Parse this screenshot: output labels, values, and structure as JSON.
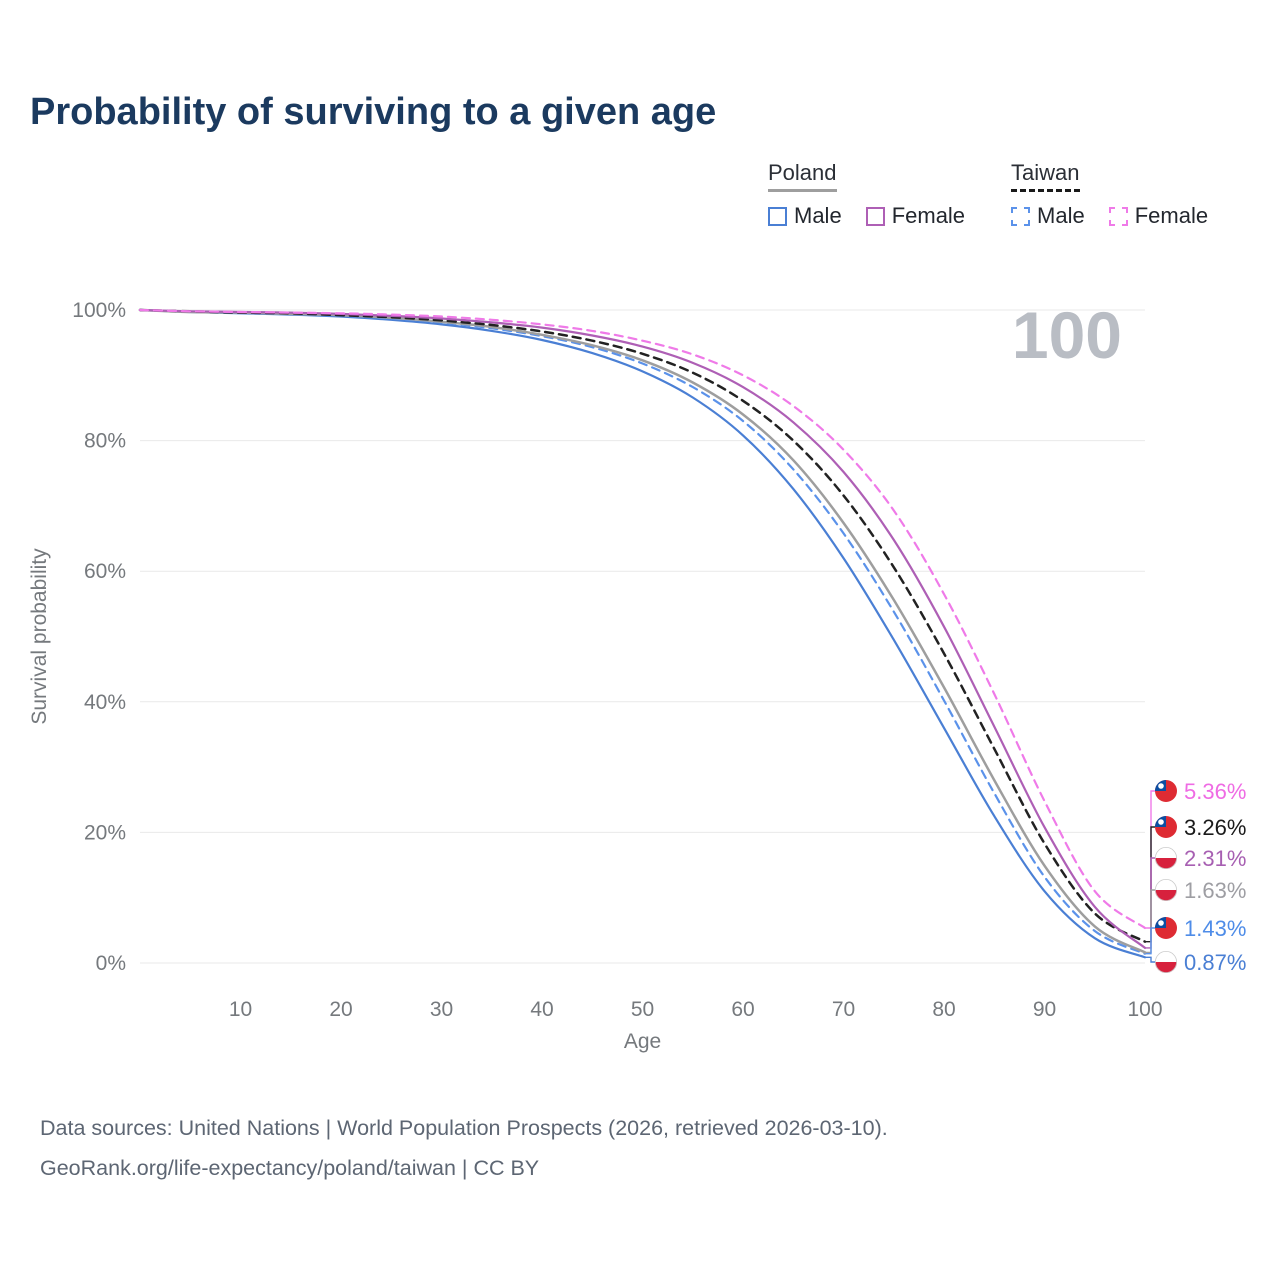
{
  "title": "Probability of surviving to a given age",
  "watermark": "100",
  "legend": {
    "groups": [
      {
        "label": "Poland",
        "style": "solid",
        "color": "#9e9e9e"
      },
      {
        "label": "Taiwan",
        "style": "dashed",
        "color": "#1a1a1a"
      }
    ],
    "items": [
      {
        "label": "Male",
        "country": "Poland",
        "style": "solid",
        "color": "#4a7fd4"
      },
      {
        "label": "Female",
        "country": "Poland",
        "style": "solid",
        "color": "#ae5fb5"
      },
      {
        "label": "Male",
        "country": "Taiwan",
        "style": "dashed",
        "color": "#5b92ea"
      },
      {
        "label": "Female",
        "country": "Taiwan",
        "style": "dashed",
        "color": "#ef7ae8"
      }
    ]
  },
  "chart_data": {
    "type": "line",
    "title": "Probability of surviving to a given age",
    "xlabel": "Age",
    "ylabel": "Survival probability",
    "xlim": [
      0,
      100
    ],
    "ylim": [
      0,
      100
    ],
    "grid": "horizontal",
    "x_ticks": [
      10,
      20,
      30,
      40,
      50,
      60,
      70,
      80,
      90,
      100
    ],
    "y_ticks": [
      {
        "value": 0,
        "label": "0%"
      },
      {
        "value": 20,
        "label": "20%"
      },
      {
        "value": 40,
        "label": "40%"
      },
      {
        "value": 60,
        "label": "60%"
      },
      {
        "value": 80,
        "label": "80%"
      },
      {
        "value": 100,
        "label": "100%"
      }
    ],
    "x": [
      0,
      5,
      10,
      15,
      20,
      25,
      30,
      35,
      40,
      45,
      50,
      55,
      60,
      65,
      70,
      75,
      80,
      85,
      90,
      95,
      100
    ],
    "series": [
      {
        "id": "poland-male",
        "name": "Poland — Male",
        "country": "poland",
        "color": "#4a7fd4",
        "dash": false,
        "width": 2.2,
        "end_label": "0.87%",
        "label_color": "#4a7fd4",
        "flag": "poland",
        "values": [
          100,
          99.7,
          99.5,
          99.3,
          99.0,
          98.5,
          97.8,
          96.8,
          95.4,
          93.4,
          90.6,
          86.6,
          80.8,
          72.6,
          62.0,
          49.5,
          36.0,
          22.5,
          11.0,
          3.8,
          0.87
        ]
      },
      {
        "id": "taiwan-male",
        "name": "Taiwan — Male",
        "country": "taiwan",
        "color": "#5b92ea",
        "dash": true,
        "width": 2.2,
        "end_label": "1.43%",
        "label_color": "#4e8ce8",
        "flag": "taiwan",
        "values": [
          100,
          99.7,
          99.6,
          99.4,
          99.1,
          98.7,
          98.1,
          97.2,
          96.0,
          94.3,
          91.8,
          88.2,
          83.0,
          75.6,
          65.8,
          53.8,
          40.2,
          26.0,
          13.2,
          4.9,
          1.43
        ]
      },
      {
        "id": "poland-total",
        "name": "Poland",
        "country": "poland",
        "color": "#9e9e9e",
        "dash": false,
        "width": 2.5,
        "end_label": "1.63%",
        "label_color": "#9e9ea3",
        "flag": "poland",
        "values": [
          100,
          99.7,
          99.6,
          99.4,
          99.2,
          98.8,
          98.2,
          97.4,
          96.2,
          94.6,
          92.3,
          88.9,
          84.0,
          77.0,
          67.4,
          55.6,
          42.2,
          28.0,
          14.9,
          5.6,
          1.63
        ]
      },
      {
        "id": "taiwan-total",
        "name": "Taiwan",
        "country": "taiwan",
        "color": "#222222",
        "dash": true,
        "width": 2.5,
        "end_label": "3.26%",
        "label_color": "#1a1a1a",
        "flag": "taiwan",
        "values": [
          100,
          99.8,
          99.6,
          99.5,
          99.2,
          98.9,
          98.4,
          97.7,
          96.7,
          95.3,
          93.3,
          90.4,
          86.1,
          80.0,
          71.6,
          60.6,
          47.4,
          32.8,
          18.3,
          7.6,
          3.26
        ]
      },
      {
        "id": "poland-female",
        "name": "Poland — Female",
        "country": "poland",
        "color": "#ae5fb5",
        "dash": false,
        "width": 2.2,
        "end_label": "2.31%",
        "label_color": "#a75fb2",
        "flag": "poland",
        "values": [
          100,
          99.8,
          99.7,
          99.6,
          99.4,
          99.1,
          98.7,
          98.1,
          97.3,
          96.1,
          94.4,
          91.9,
          88.2,
          82.8,
          75.2,
          64.8,
          51.5,
          36.2,
          20.8,
          8.6,
          2.31
        ]
      },
      {
        "id": "taiwan-female",
        "name": "Taiwan — Female",
        "country": "taiwan",
        "color": "#ef7ae8",
        "dash": true,
        "width": 2.2,
        "end_label": "5.36%",
        "label_color": "#ef6be4",
        "flag": "taiwan",
        "values": [
          100,
          99.8,
          99.7,
          99.6,
          99.5,
          99.3,
          99.0,
          98.5,
          97.8,
          96.8,
          95.3,
          93.2,
          90.0,
          85.3,
          78.6,
          69.3,
          56.5,
          41.2,
          24.8,
          11.0,
          5.36
        ]
      }
    ]
  },
  "footer": {
    "line1": "Data sources: United Nations | World Population Prospects (2026, retrieved 2026-03-10).",
    "line2": "GeoRank.org/life-expectancy/poland/taiwan | CC BY"
  }
}
